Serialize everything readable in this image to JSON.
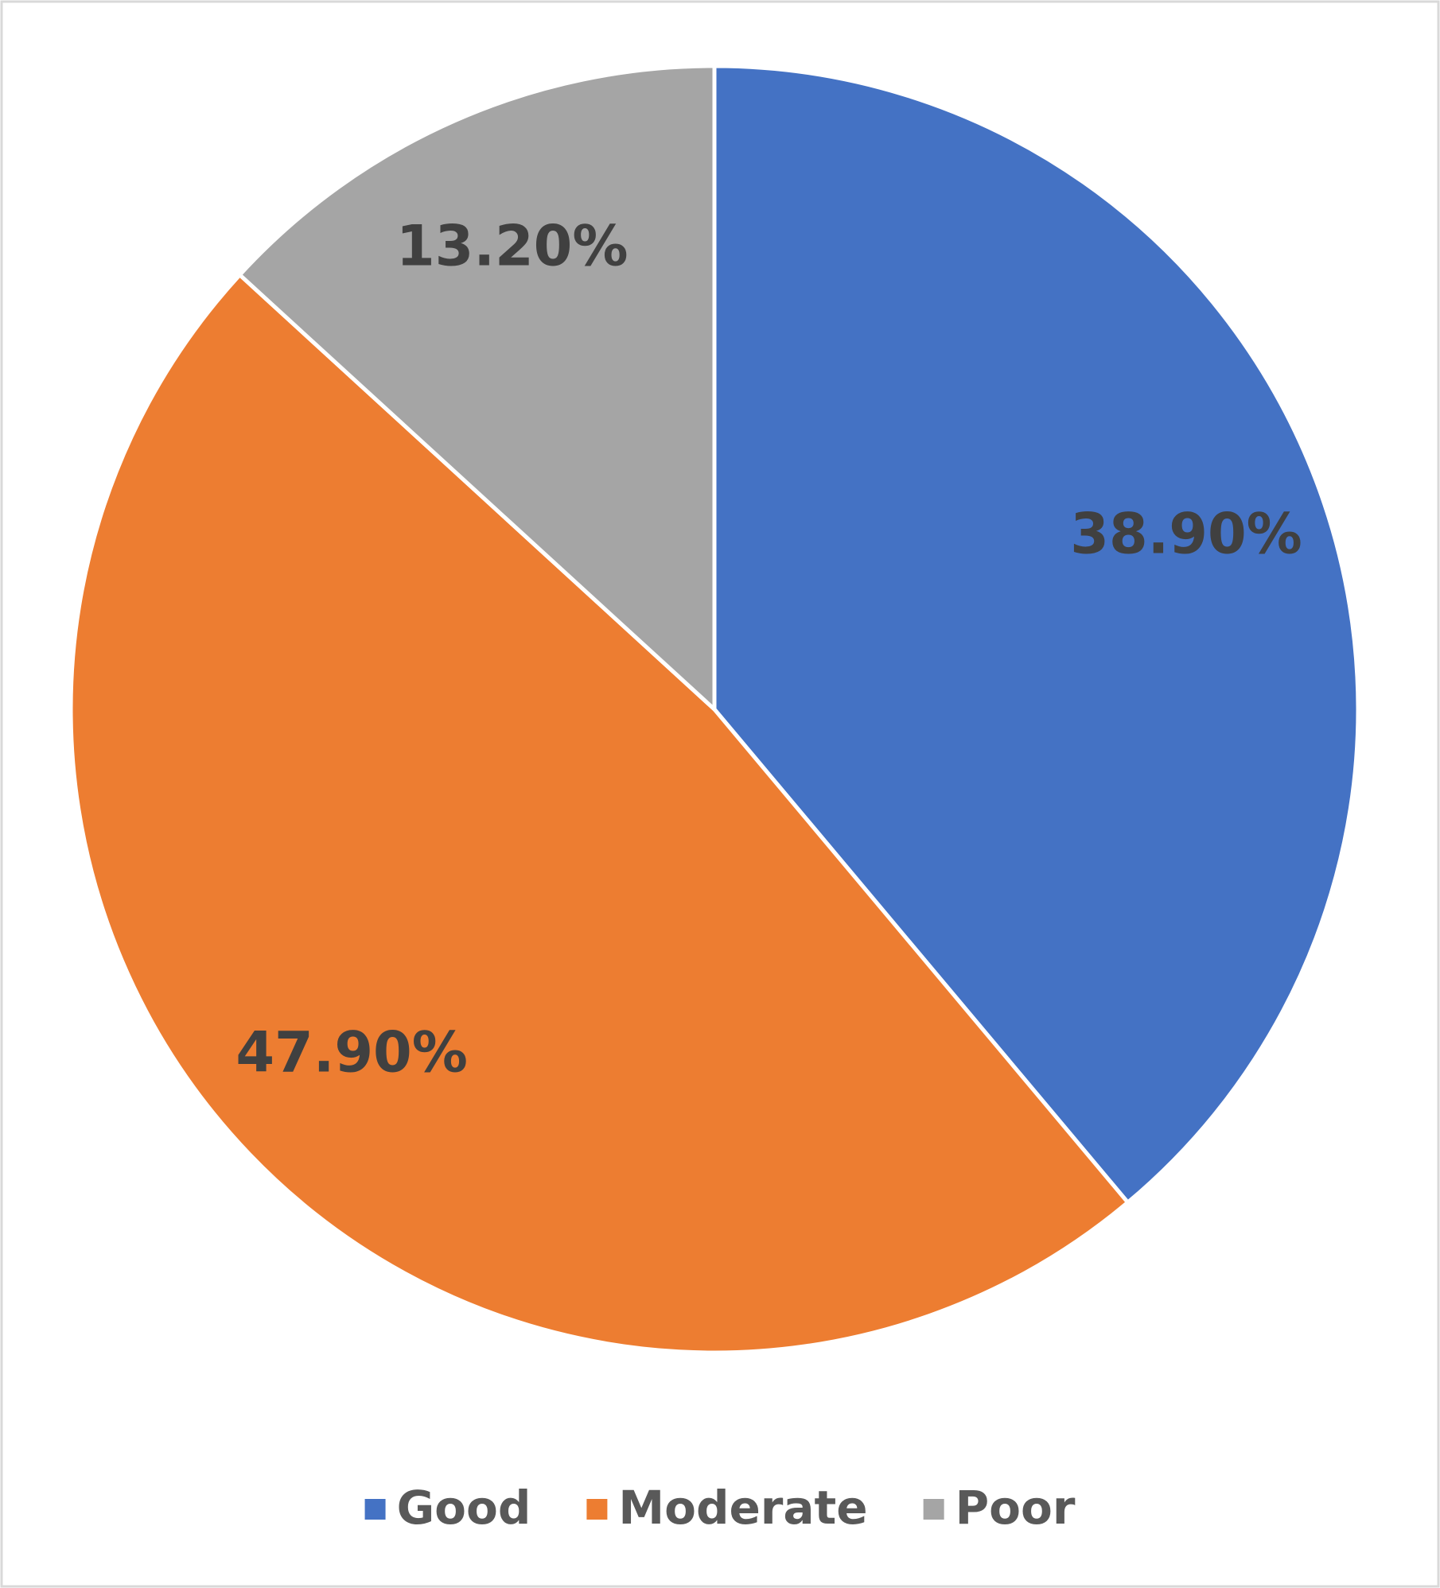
{
  "chart_data": {
    "type": "pie",
    "categories": [
      "Good",
      "Moderate",
      "Poor"
    ],
    "values": [
      38.9,
      47.9,
      13.2
    ],
    "value_labels": [
      "38.90%",
      "47.90%",
      "13.20%"
    ],
    "colors": [
      "#4472c4",
      "#ed7d31",
      "#a5a5a5"
    ],
    "legend": "bottom"
  }
}
